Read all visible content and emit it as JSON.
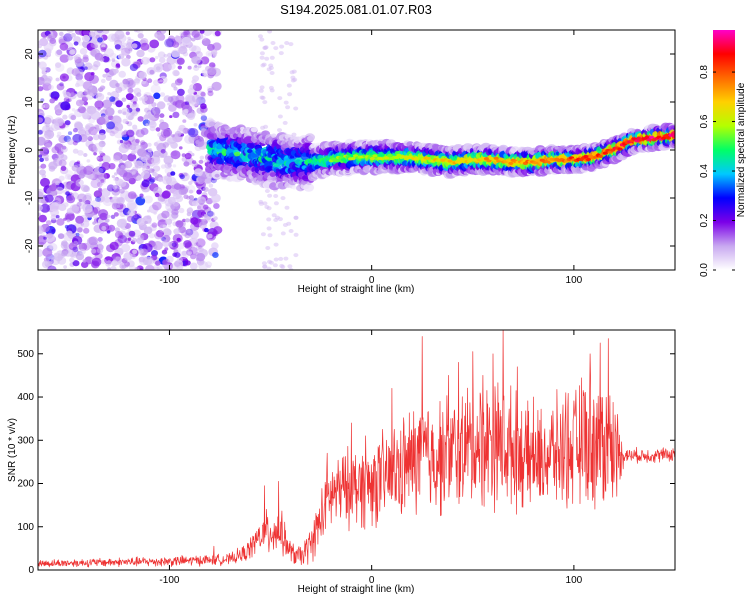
{
  "chart_data": [
    {
      "type": "heatmap",
      "title": "S194.2025.081.01.07.R03",
      "xlabel": "Height of straight line (km)",
      "ylabel": "Frequency (Hz)",
      "xlim": [
        -165,
        150
      ],
      "ylim": [
        -25,
        25
      ],
      "xticks": [
        -100,
        0,
        100
      ],
      "yticks": [
        -20,
        -10,
        0,
        10,
        20
      ],
      "colorbar": {
        "label": "Normalized spectral amplitude",
        "range": [
          0,
          0.97
        ],
        "ticks": [
          0.0,
          0.2,
          0.4,
          0.6,
          0.8
        ],
        "colormap": [
          "#ffffff",
          "#c8a8f0",
          "#7b00e8",
          "#0000ff",
          "#00c8ff",
          "#00ff66",
          "#b4ff00",
          "#ffd000",
          "#ff6a00",
          "#ff0000",
          "#ff00c8"
        ]
      },
      "ridge": {
        "x": [
          -78,
          -70,
          -60,
          -50,
          -40,
          -30,
          -20,
          -10,
          0,
          10,
          20,
          30,
          40,
          50,
          60,
          70,
          80,
          90,
          100,
          110,
          120,
          130,
          140,
          150
        ],
        "frequency": [
          0,
          -0.5,
          -1,
          -2,
          -2.5,
          -2.5,
          -2,
          -1.5,
          -1.5,
          -1.5,
          -1.5,
          -2,
          -2.5,
          -2,
          -2,
          -2.5,
          -2.5,
          -2,
          -2,
          -1.5,
          0,
          2,
          2.5,
          3
        ]
      },
      "noise_region_x": [
        -165,
        -80
      ]
    },
    {
      "type": "line",
      "xlabel": "Height of straight line (km)",
      "ylabel": "SNR (10 * v/v)",
      "xlim": [
        -165,
        150
      ],
      "ylim": [
        0,
        555
      ],
      "xticks": [
        -100,
        0,
        100
      ],
      "yticks": [
        0,
        100,
        200,
        300,
        400,
        500
      ],
      "series": [
        {
          "color": "#ee3333",
          "envelope": {
            "x": [
              -165,
              -130,
              -100,
              -70,
              -62,
              -55,
              -50,
              -45,
              -40,
              -35,
              -30,
              -25,
              -22,
              -18,
              -10,
              0,
              10,
              20,
              25,
              30,
              40,
              50,
              60,
              70,
              80,
              90,
              100,
              105,
              110,
              115,
              120,
              125,
              130,
              140,
              150
            ],
            "mean": [
              15,
              18,
              20,
              25,
              40,
              80,
              90,
              90,
              40,
              30,
              60,
              120,
              160,
              180,
              190,
              200,
              220,
              250,
              270,
              260,
              270,
              290,
              300,
              280,
              250,
              270,
              280,
              300,
              300,
              300,
              280,
              265,
              265,
              265,
              268
            ],
            "spread": [
              10,
              12,
              14,
              15,
              25,
              45,
              70,
              60,
              30,
              30,
              50,
              80,
              90,
              100,
              110,
              120,
              130,
              150,
              160,
              160,
              160,
              170,
              180,
              160,
              130,
              150,
              160,
              180,
              190,
              190,
              160,
              20,
              20,
              20,
              20
            ],
            "peaks": [
              [
                -78,
                55
              ],
              [
                -53,
                195
              ],
              [
                -46,
                205
              ],
              [
                -22,
                270
              ],
              [
                -10,
                340
              ],
              [
                -3,
                310
              ],
              [
                10,
                420
              ],
              [
                25,
                540
              ],
              [
                38,
                450
              ],
              [
                43,
                480
              ],
              [
                50,
                505
              ],
              [
                55,
                450
              ],
              [
                60,
                500
              ],
              [
                65,
                555
              ],
              [
                72,
                470
              ],
              [
                80,
                400
              ],
              [
                96,
                410
              ],
              [
                105,
                410
              ],
              [
                108,
                500
              ],
              [
                113,
                525
              ],
              [
                117,
                535
              ]
            ]
          }
        }
      ]
    }
  ]
}
